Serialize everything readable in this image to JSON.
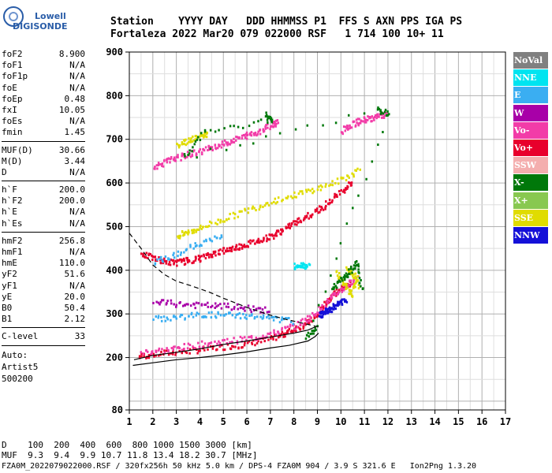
{
  "logo": {
    "brand_top": "Lowell",
    "brand_bottom": "DIGISONDE"
  },
  "header": {
    "row1": "Station    YYYY DAY   DDD HHMMSS P1  FFS S AXN PPS IGA PS",
    "row2": "Fortaleza 2022 Mar20 079 022000 RSF   1 714 100 10+ 11"
  },
  "params": {
    "group1": [
      {
        "k": "foF2",
        "v": "8.900"
      },
      {
        "k": "foF1",
        "v": "N/A"
      },
      {
        "k": "foF1p",
        "v": "N/A"
      },
      {
        "k": "foE",
        "v": "N/A"
      },
      {
        "k": "foEp",
        "v": "0.48"
      },
      {
        "k": "fxI",
        "v": "10.05"
      },
      {
        "k": "foEs",
        "v": "N/A"
      },
      {
        "k": "fmin",
        "v": "1.45"
      }
    ],
    "group2": [
      {
        "k": "MUF(D)",
        "v": "30.66"
      },
      {
        "k": "M(D)",
        "v": "3.44"
      },
      {
        "k": "D",
        "v": "N/A"
      }
    ],
    "group3": [
      {
        "k": "h`F",
        "v": "200.0"
      },
      {
        "k": "h`F2",
        "v": "200.0"
      },
      {
        "k": "h`E",
        "v": "N/A"
      },
      {
        "k": "h`Es",
        "v": "N/A"
      }
    ],
    "group4": [
      {
        "k": "hmF2",
        "v": "256.8"
      },
      {
        "k": "hmF1",
        "v": "N/A"
      },
      {
        "k": "hmE",
        "v": "110.0"
      },
      {
        "k": "yF2",
        "v": "51.6"
      },
      {
        "k": "yF1",
        "v": "N/A"
      },
      {
        "k": "yE",
        "v": "20.0"
      },
      {
        "k": "B0",
        "v": "50.4"
      },
      {
        "k": "B1",
        "v": "2.12"
      }
    ],
    "group5": [
      {
        "k": "C-level",
        "v": "33"
      }
    ],
    "auto": [
      "Auto:",
      "Artist5",
      "500200"
    ]
  },
  "legend": [
    {
      "label": "NoVal",
      "color": "#808080"
    },
    {
      "label": "NNE",
      "color": "#00e4f0"
    },
    {
      "label": "E",
      "color": "#3aaef2"
    },
    {
      "label": "W",
      "color": "#a800a8"
    },
    {
      "label": "Vo-",
      "color": "#f23ca8"
    },
    {
      "label": "Vo+",
      "color": "#e8002c"
    },
    {
      "label": "SSW",
      "color": "#f4aeae"
    },
    {
      "label": "X-",
      "color": "#00780a"
    },
    {
      "label": "X+",
      "color": "#88c850"
    },
    {
      "label": "SSE",
      "color": "#e0dc00"
    },
    {
      "label": "NNW",
      "color": "#1410d8"
    }
  ],
  "footer": {
    "line1": "D    100  200  400  600  800 1000 1500 3000 [km]",
    "line2": "MUF  9.3  9.4  9.9 10.7 11.8 13.4 18.2 30.7 [MHz]",
    "line3": "FZA0M_2022079022000.RSF / 320fx256h 50 kHz 5.0 km / DPS-4 FZA0M 904 / 3.9 S 321.6 E   Ion2Png 1.3.20"
  },
  "chart_data": {
    "type": "scatter",
    "title": "",
    "xlabel": "",
    "ylabel": "",
    "xlim": [
      1,
      17
    ],
    "ylim": [
      80,
      900
    ],
    "x_ticks": [
      1,
      2,
      3,
      4,
      5,
      6,
      7,
      8,
      9,
      10,
      11,
      12,
      13,
      14,
      15,
      16,
      17
    ],
    "y_ticks": [
      80,
      200,
      300,
      400,
      500,
      600,
      700,
      800,
      900
    ],
    "grid": true,
    "legend_position": "right",
    "trace_color": "#000000",
    "traces": [
      {
        "name": "O trace",
        "style": "solid",
        "points": [
          [
            1.2,
            195
          ],
          [
            2,
            205
          ],
          [
            3,
            212
          ],
          [
            4,
            220
          ],
          [
            5,
            230
          ],
          [
            6,
            238
          ],
          [
            7,
            247
          ],
          [
            8,
            256
          ],
          [
            8.6,
            263
          ],
          [
            8.9,
            270
          ]
        ]
      },
      {
        "name": "profile",
        "style": "solid",
        "points": [
          [
            1.15,
            182
          ],
          [
            2,
            188
          ],
          [
            3,
            195
          ],
          [
            4,
            200
          ],
          [
            5,
            206
          ],
          [
            6,
            213
          ],
          [
            7,
            222
          ],
          [
            7.8,
            228
          ],
          [
            8.6,
            238
          ],
          [
            8.9,
            248
          ],
          [
            9.05,
            256
          ]
        ]
      },
      {
        "name": "profile-upper",
        "style": "dashed",
        "points": [
          [
            1.0,
            485
          ],
          [
            1.5,
            450
          ],
          [
            2,
            412
          ],
          [
            2.5,
            390
          ],
          [
            3,
            375
          ],
          [
            3.6,
            365
          ],
          [
            4.4,
            350
          ],
          [
            5,
            336
          ],
          [
            6,
            315
          ],
          [
            7,
            297
          ],
          [
            7.7,
            287
          ],
          [
            8.6,
            276
          ],
          [
            9.05,
            270
          ]
        ]
      }
    ],
    "echo_bands": [
      {
        "name": "F2 trace",
        "color": "#e8002c",
        "points": [
          [
            1.4,
            205
          ],
          [
            2,
            210
          ],
          [
            3,
            215
          ],
          [
            4,
            220
          ],
          [
            5,
            227
          ],
          [
            6,
            233
          ],
          [
            7,
            245
          ],
          [
            7.5,
            255
          ],
          [
            8,
            268
          ],
          [
            8.5,
            280
          ],
          [
            9,
            300
          ],
          [
            9.3,
            325
          ],
          [
            9.6,
            345
          ],
          [
            10,
            360
          ],
          [
            10.4,
            372
          ]
        ]
      },
      {
        "name": "F2 trace",
        "color": "#f23ca8",
        "points": [
          [
            1.5,
            215
          ],
          [
            2.5,
            220
          ],
          [
            3.5,
            228
          ],
          [
            4.5,
            236
          ],
          [
            5.5,
            242
          ],
          [
            6.5,
            250
          ],
          [
            7.3,
            262
          ],
          [
            8.2,
            280
          ],
          [
            8.8,
            300
          ],
          [
            9.4,
            330
          ],
          [
            9.9,
            355
          ],
          [
            10.3,
            370
          ],
          [
            10.7,
            390
          ]
        ]
      },
      {
        "name": "2nd hop",
        "color": "#e8002c",
        "points": [
          [
            1.5,
            440
          ],
          [
            2,
            430
          ],
          [
            2.5,
            422
          ],
          [
            3,
            420
          ],
          [
            3.5,
            425
          ],
          [
            4,
            430
          ],
          [
            4.5,
            440
          ],
          [
            5,
            448
          ],
          [
            5.5,
            455
          ],
          [
            6,
            462
          ],
          [
            6.5,
            472
          ],
          [
            7,
            480
          ],
          [
            7.5,
            495
          ],
          [
            8,
            510
          ],
          [
            8.5,
            525
          ],
          [
            9,
            540
          ],
          [
            9.5,
            560
          ],
          [
            10,
            585
          ],
          [
            10.5,
            605
          ]
        ]
      },
      {
        "name": "2nd hop",
        "color": "#e0dc00",
        "points": [
          [
            3,
            480
          ],
          [
            3.5,
            490
          ],
          [
            4,
            500
          ],
          [
            5,
            520
          ],
          [
            6,
            540
          ],
          [
            7,
            560
          ],
          [
            8,
            575
          ],
          [
            9,
            590
          ],
          [
            10,
            610
          ],
          [
            10.8,
            635
          ]
        ]
      },
      {
        "name": "3rd hop",
        "color": "#f23ca8",
        "points": [
          [
            2,
            640
          ],
          [
            2.5,
            650
          ],
          [
            3,
            660
          ],
          [
            3.5,
            668
          ],
          [
            4,
            675
          ],
          [
            4.5,
            685
          ],
          [
            5,
            692
          ],
          [
            5.5,
            702
          ],
          [
            6,
            712
          ],
          [
            6.5,
            720
          ],
          [
            7,
            735
          ],
          [
            7.3,
            745
          ]
        ]
      },
      {
        "name": "3rd hop",
        "color": "#e0dc00",
        "points": [
          [
            3,
            690
          ],
          [
            3.5,
            700
          ],
          [
            4,
            710
          ],
          [
            4.3,
            715
          ]
        ]
      },
      {
        "name": "top",
        "color": "#f23ca8",
        "points": [
          [
            10,
            720
          ],
          [
            10.4,
            735
          ],
          [
            10.8,
            745
          ],
          [
            11.2,
            750
          ],
          [
            11.6,
            755
          ],
          [
            11.9,
            760
          ]
        ]
      },
      {
        "name": "spread",
        "color": "#a800a8",
        "points": [
          [
            2,
            330
          ],
          [
            3,
            325
          ],
          [
            4,
            322
          ],
          [
            5,
            320
          ],
          [
            6,
            315
          ],
          [
            7,
            310
          ]
        ]
      },
      {
        "name": "spread",
        "color": "#3aaef2",
        "points": [
          [
            2,
            290
          ],
          [
            3,
            295
          ],
          [
            4,
            300
          ],
          [
            5,
            300
          ],
          [
            6,
            298
          ],
          [
            7,
            292
          ],
          [
            8,
            285
          ]
        ]
      },
      {
        "name": "spread-upper",
        "color": "#3aaef2",
        "points": [
          [
            2,
            420
          ],
          [
            3,
            440
          ],
          [
            4,
            465
          ],
          [
            5,
            480
          ]
        ]
      },
      {
        "name": "cluster",
        "color": "#e0dc00",
        "points": [
          [
            9.8,
            400
          ],
          [
            10.1,
            370
          ],
          [
            10.4,
            345
          ],
          [
            10.7,
            385
          ],
          [
            10.2,
            410
          ],
          [
            10.8,
            360
          ]
        ]
      },
      {
        "name": "cluster",
        "color": "#00780a",
        "points": [
          [
            9.6,
            360
          ],
          [
            10,
            380
          ],
          [
            10.3,
            395
          ],
          [
            10.6,
            420
          ],
          [
            10.9,
            350
          ]
        ]
      },
      {
        "name": "dots",
        "color": "#1410d8",
        "points": [
          [
            9.1,
            300
          ],
          [
            9.2,
            305
          ],
          [
            9.4,
            310
          ],
          [
            9.6,
            315
          ],
          [
            9.9,
            330
          ],
          [
            10.2,
            330
          ]
        ]
      },
      {
        "name": "dots",
        "color": "#00e4f0",
        "points": [
          [
            8,
            410
          ],
          [
            8.3,
            415
          ],
          [
            8.6,
            412
          ]
        ]
      },
      {
        "name": "dots",
        "color": "#00780a",
        "points": [
          [
            6.8,
            760
          ],
          [
            7,
            745
          ],
          [
            4.2,
            720
          ],
          [
            3.3,
            660
          ],
          [
            11.5,
            770
          ],
          [
            12,
            760
          ],
          [
            8.5,
            250
          ],
          [
            9,
            270
          ]
        ]
      }
    ]
  }
}
